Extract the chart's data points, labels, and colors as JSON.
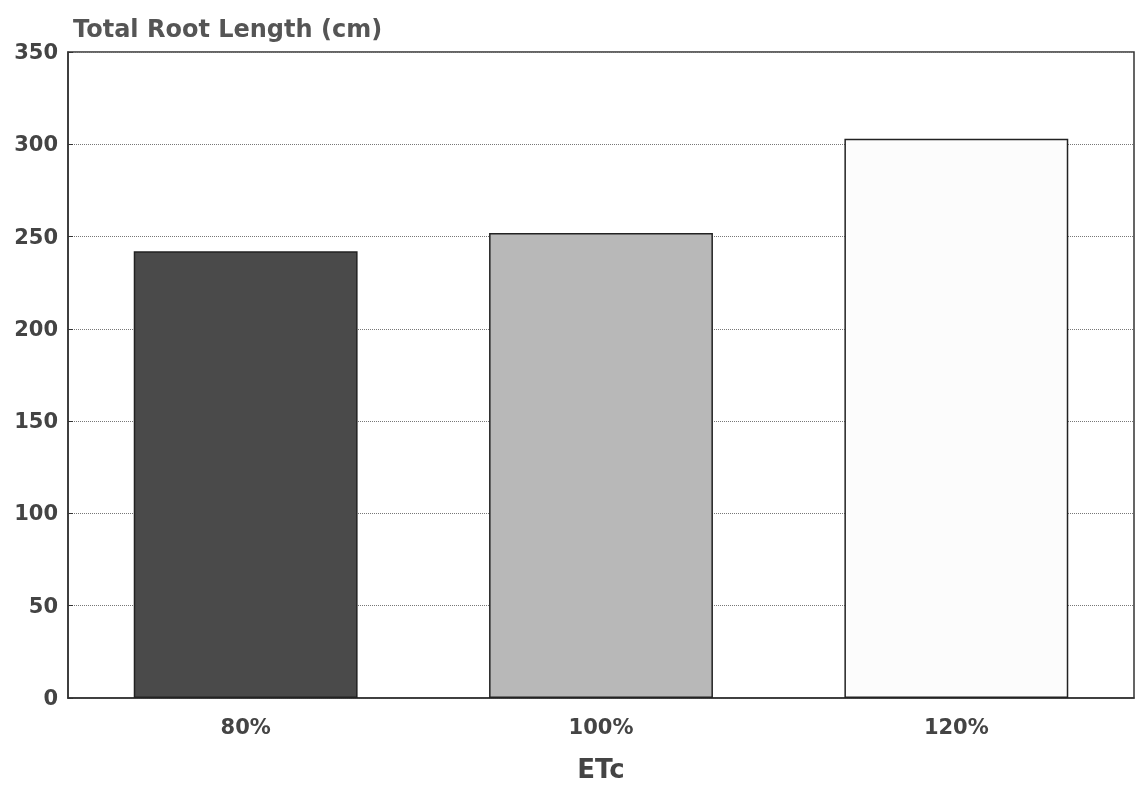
{
  "chart_data": {
    "type": "bar",
    "title": "Total Root Length (cm)",
    "xlabel": "ETc",
    "categories": [
      "80%",
      "100%",
      "120%"
    ],
    "values": [
      242,
      252,
      303
    ],
    "colors": [
      "#4a4a4a",
      "#b8b8b8",
      "#fcfcfc"
    ],
    "ylim": [
      0,
      350
    ],
    "yticks": [
      0,
      50,
      100,
      150,
      200,
      250,
      300,
      350
    ],
    "grid": "y"
  }
}
